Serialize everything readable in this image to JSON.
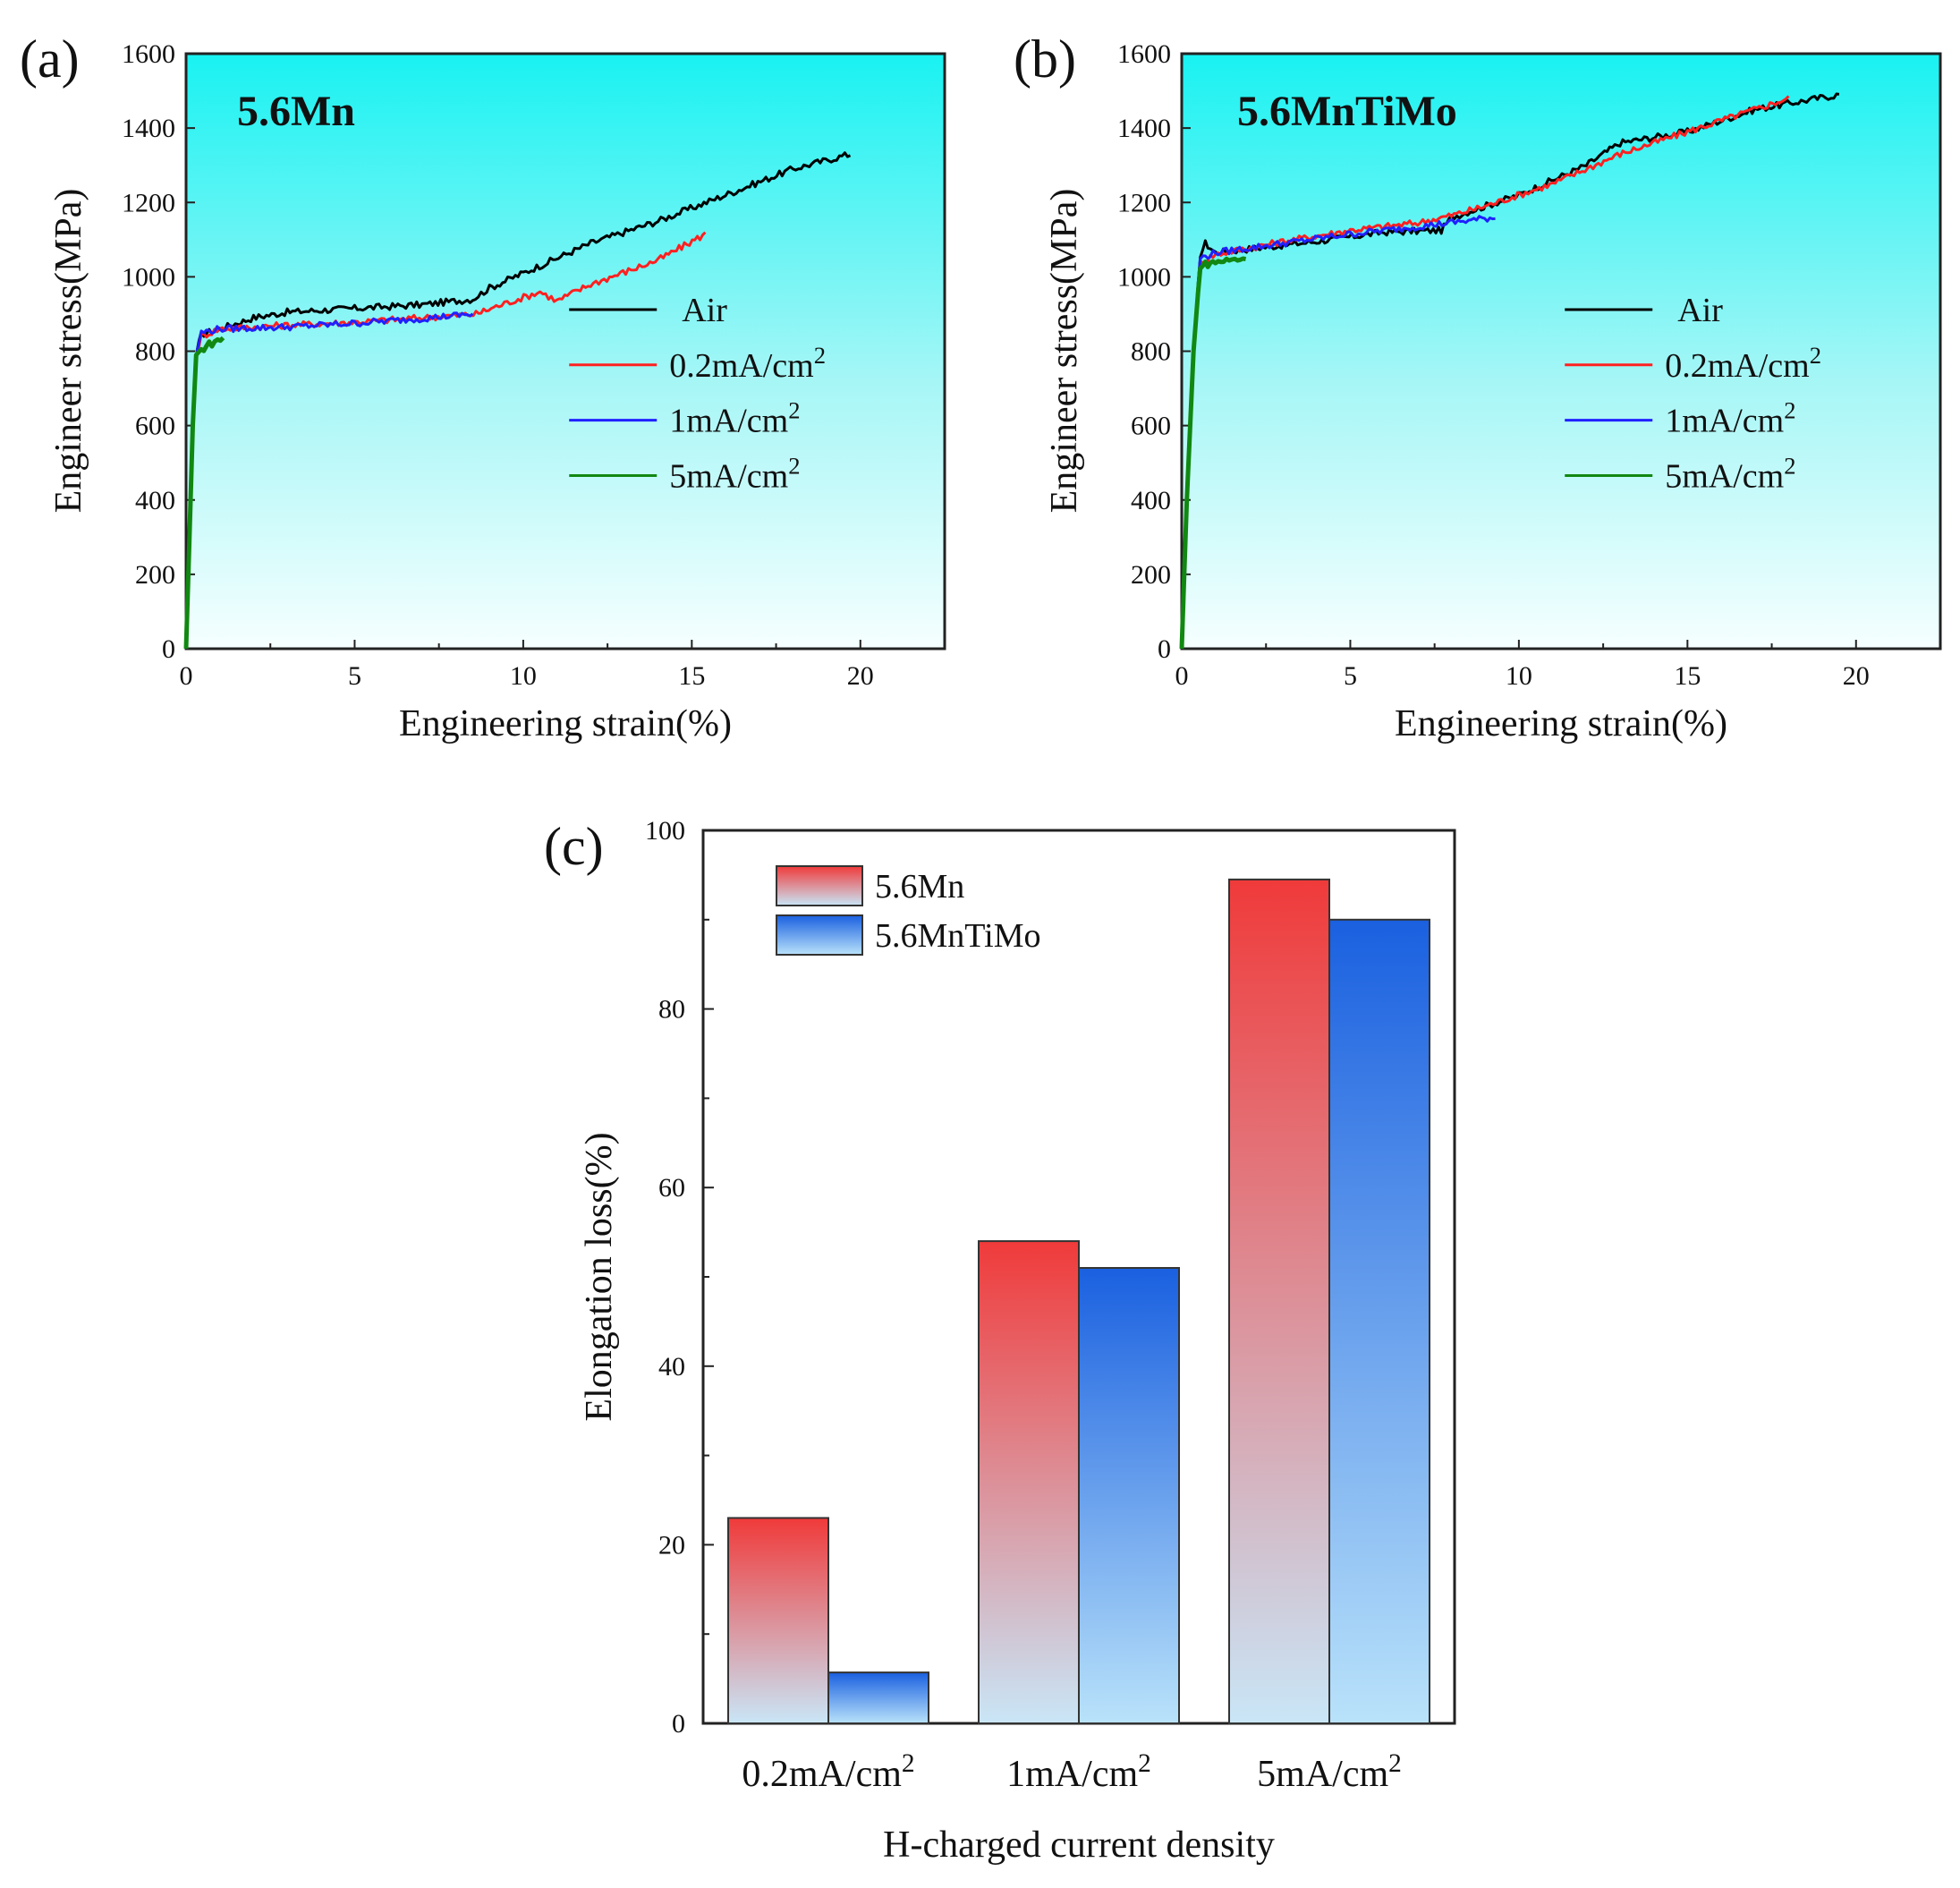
{
  "chart_data": [
    {
      "id": "a",
      "type": "line",
      "panel_label": "(a)",
      "title": "5.6Mn",
      "xlabel": "Engineering strain(%)",
      "ylabel": "Engineer stress(MPa)",
      "xlim": [
        0,
        22.5
      ],
      "ylim": [
        0,
        1600
      ],
      "xticks": [
        0,
        5,
        10,
        15,
        20
      ],
      "yticks": [
        0,
        200,
        400,
        600,
        800,
        1000,
        1200,
        1400,
        1600
      ],
      "legend_position": "bottom-right",
      "background": "gradient cyan-to-white",
      "series": [
        {
          "name": "Air",
          "sup": "",
          "color": "#000000",
          "points": [
            [
              0,
              0
            ],
            [
              0.1,
              300
            ],
            [
              0.2,
              600
            ],
            [
              0.32,
              800
            ],
            [
              0.45,
              845
            ],
            [
              1,
              860
            ],
            [
              2,
              890
            ],
            [
              3,
              905
            ],
            [
              5,
              915
            ],
            [
              7,
              925
            ],
            [
              8.5,
              940
            ],
            [
              9,
              970
            ],
            [
              10,
              1010
            ],
            [
              12,
              1090
            ],
            [
              14,
              1150
            ],
            [
              16,
              1220
            ],
            [
              18,
              1290
            ],
            [
              19.7,
              1330
            ]
          ]
        },
        {
          "name": "0.2mA/cm",
          "sup": "2",
          "color": "#ff2020",
          "points": [
            [
              0,
              0
            ],
            [
              0.1,
              300
            ],
            [
              0.2,
              600
            ],
            [
              0.32,
              800
            ],
            [
              0.45,
              840
            ],
            [
              1,
              860
            ],
            [
              3,
              870
            ],
            [
              5,
              878
            ],
            [
              7,
              890
            ],
            [
              8.6,
              900
            ],
            [
              9.2,
              920
            ],
            [
              10.5,
              960
            ],
            [
              11,
              935
            ],
            [
              12,
              980
            ],
            [
              14,
              1045
            ],
            [
              15.4,
              1115
            ]
          ]
        },
        {
          "name": "1mA/cm",
          "sup": "2",
          "color": "#2020ff",
          "points": [
            [
              0,
              0
            ],
            [
              0.1,
              300
            ],
            [
              0.2,
              600
            ],
            [
              0.32,
              800
            ],
            [
              0.45,
              850
            ],
            [
              1,
              860
            ],
            [
              3,
              865
            ],
            [
              5,
              875
            ],
            [
              7,
              888
            ],
            [
              8.5,
              900
            ]
          ]
        },
        {
          "name": "5mA/cm",
          "sup": "2",
          "color": "#118811",
          "points": [
            [
              0,
              0
            ],
            [
              0.1,
              300
            ],
            [
              0.2,
              600
            ],
            [
              0.3,
              790
            ],
            [
              0.6,
              815
            ],
            [
              1.1,
              835
            ]
          ]
        }
      ]
    },
    {
      "id": "b",
      "type": "line",
      "panel_label": "(b)",
      "title": "5.6MnTiMo",
      "xlabel": "Engineering strain(%)",
      "ylabel": "Engineer stress(MPa)",
      "xlim": [
        0,
        22.5
      ],
      "ylim": [
        0,
        1600
      ],
      "xticks": [
        0,
        5,
        10,
        15,
        20
      ],
      "yticks": [
        0,
        200,
        400,
        600,
        800,
        1000,
        1200,
        1400,
        1600
      ],
      "legend_position": "bottom-right",
      "background": "gradient cyan-to-white",
      "series": [
        {
          "name": "Air",
          "sup": "",
          "color": "#000000",
          "points": [
            [
              0,
              0
            ],
            [
              0.15,
              400
            ],
            [
              0.35,
              800
            ],
            [
              0.55,
              1060
            ],
            [
              0.7,
              1090
            ],
            [
              1,
              1065
            ],
            [
              2,
              1075
            ],
            [
              4,
              1095
            ],
            [
              6,
              1120
            ],
            [
              7.7,
              1125
            ],
            [
              8,
              1160
            ],
            [
              10,
              1220
            ],
            [
              12,
              1300
            ],
            [
              13,
              1360
            ],
            [
              15,
              1390
            ],
            [
              17,
              1450
            ],
            [
              19.5,
              1490
            ]
          ]
        },
        {
          "name": "0.2mA/cm",
          "sup": "2",
          "color": "#ff2020",
          "points": [
            [
              0,
              0
            ],
            [
              0.15,
              400
            ],
            [
              0.35,
              800
            ],
            [
              0.55,
              1040
            ],
            [
              1,
              1060
            ],
            [
              3,
              1095
            ],
            [
              5,
              1125
            ],
            [
              7,
              1145
            ],
            [
              8,
              1165
            ],
            [
              9,
              1190
            ],
            [
              11,
              1250
            ],
            [
              13,
              1330
            ],
            [
              15,
              1390
            ],
            [
              18,
              1480
            ]
          ]
        },
        {
          "name": "1mA/cm",
          "sup": "2",
          "color": "#2020ff",
          "points": [
            [
              0,
              0
            ],
            [
              0.15,
              400
            ],
            [
              0.35,
              800
            ],
            [
              0.55,
              1050
            ],
            [
              1,
              1065
            ],
            [
              3,
              1090
            ],
            [
              5,
              1115
            ],
            [
              7,
              1135
            ],
            [
              9.3,
              1160
            ]
          ]
        },
        {
          "name": "5mA/cm",
          "sup": "2",
          "color": "#118811",
          "points": [
            [
              0,
              0
            ],
            [
              0.15,
              400
            ],
            [
              0.35,
              800
            ],
            [
              0.55,
              1030
            ],
            [
              1,
              1040
            ],
            [
              1.9,
              1050
            ]
          ]
        }
      ]
    },
    {
      "id": "c",
      "type": "bar",
      "panel_label": "(c)",
      "xlabel": "H-charged current density",
      "ylabel": "Elongation loss(%)",
      "ylim": [
        0,
        100
      ],
      "yticks": [
        0,
        20,
        40,
        60,
        80,
        100
      ],
      "categories": [
        {
          "text": "0.2mA/cm",
          "sup": "2"
        },
        {
          "text": "1mA/cm",
          "sup": "2"
        },
        {
          "text": "5mA/cm",
          "sup": "2"
        }
      ],
      "legend_position": "top-left",
      "series": [
        {
          "name": "5.6Mn",
          "colors": [
            "#f03a3a",
            "#c9e6f7"
          ],
          "values": [
            23,
            54,
            94.5
          ]
        },
        {
          "name": "5.6MnTiMo",
          "colors": [
            "#1a60e0",
            "#b9e2fa"
          ],
          "values": [
            5.7,
            51,
            90
          ]
        }
      ]
    }
  ]
}
